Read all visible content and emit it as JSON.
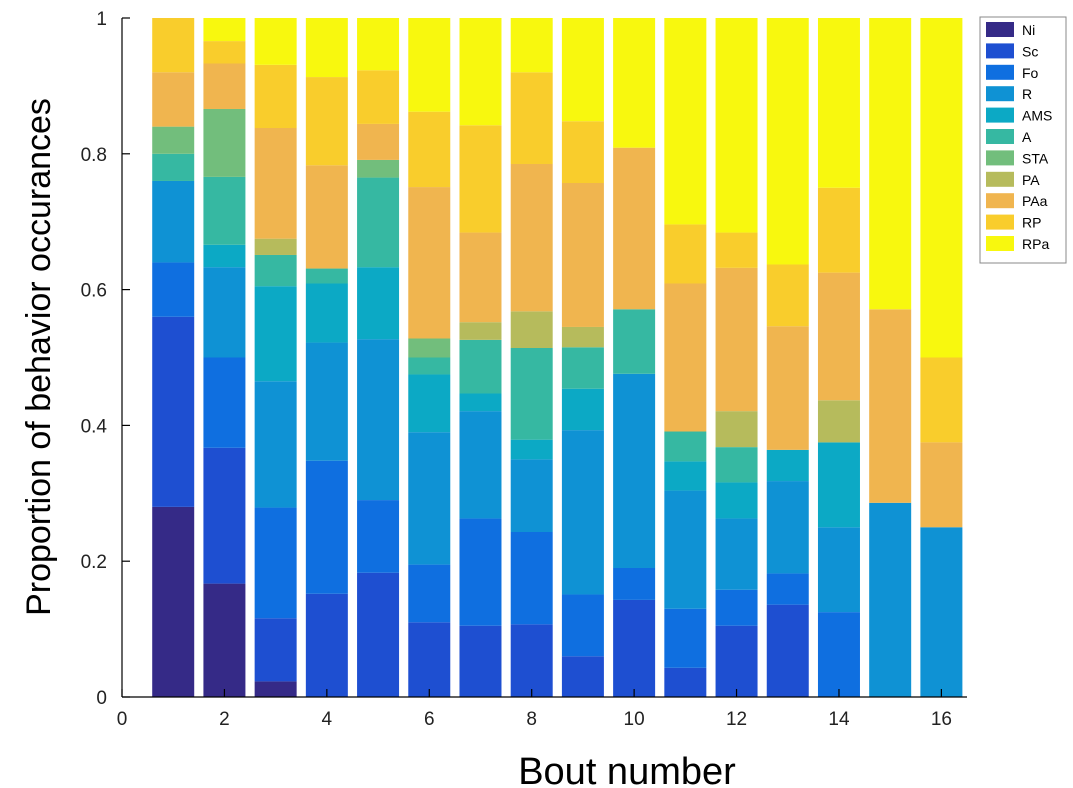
{
  "chart_data": {
    "type": "bar",
    "stacked": true,
    "xlabel": "Bout number",
    "ylabel": "Proportion of behavior occurances",
    "xlim": [
      0,
      16.5
    ],
    "ylim": [
      0,
      1
    ],
    "xticks": [
      0,
      2,
      4,
      6,
      8,
      10,
      12,
      14,
      16
    ],
    "yticks": [
      0,
      0.2,
      0.4,
      0.6,
      0.8,
      1
    ],
    "ytick_labels": [
      "0",
      "0.2",
      "0.4",
      "0.6",
      "0.8",
      "1"
    ],
    "legend_position": "top-right outside plot",
    "grid": false,
    "categories": [
      1,
      2,
      3,
      4,
      5,
      6,
      7,
      8,
      9,
      10,
      11,
      12,
      13,
      14,
      15,
      16
    ],
    "series": [
      {
        "name": "Ni",
        "color": "#352a87",
        "values": [
          0.28,
          0.167,
          0.023,
          0,
          0,
          0,
          0,
          0,
          0,
          0,
          0,
          0,
          0,
          0,
          0,
          0
        ]
      },
      {
        "name": "Sc",
        "color": "#1e4fd1",
        "values": [
          0.28,
          0.2,
          0.093,
          0.152,
          0.183,
          0.11,
          0.105,
          0.107,
          0.06,
          0.143,
          0.043,
          0.105,
          0.136,
          0,
          0,
          0
        ]
      },
      {
        "name": "Fo",
        "color": "#0f6fe0",
        "values": [
          0.08,
          0.133,
          0.163,
          0.196,
          0.107,
          0.085,
          0.158,
          0.136,
          0.091,
          0.047,
          0.087,
          0.053,
          0.046,
          0.125,
          0,
          0
        ]
      },
      {
        "name": "R",
        "color": "#0f92d4",
        "values": [
          0.12,
          0.133,
          0.186,
          0.174,
          0.237,
          0.195,
          0.158,
          0.107,
          0.242,
          0.286,
          0.174,
          0.105,
          0.136,
          0.125,
          0.286,
          0.25
        ]
      },
      {
        "name": "AMS",
        "color": "#0ca9c5",
        "values": [
          0,
          0.033,
          0.14,
          0.087,
          0.106,
          0.085,
          0.026,
          0.029,
          0.061,
          0,
          0.043,
          0.053,
          0.046,
          0.125,
          0,
          0
        ]
      },
      {
        "name": "A",
        "color": "#36b8a2",
        "values": [
          0.04,
          0.1,
          0.046,
          0.022,
          0.132,
          0.025,
          0.079,
          0.135,
          0.061,
          0.095,
          0.044,
          0.052,
          0,
          0,
          0,
          0
        ]
      },
      {
        "name": "STA",
        "color": "#72be7c",
        "values": [
          0.04,
          0.1,
          0,
          0,
          0.026,
          0.028,
          0,
          0,
          0,
          0,
          0,
          0,
          0,
          0,
          0,
          0
        ]
      },
      {
        "name": "PA",
        "color": "#b6bb5c",
        "values": [
          0,
          0,
          0.024,
          0,
          0,
          0,
          0.026,
          0.054,
          0.03,
          0,
          0,
          0.053,
          0,
          0.062,
          0,
          0
        ]
      },
      {
        "name": "PAa",
        "color": "#f0b54f",
        "values": [
          0.08,
          0.067,
          0.163,
          0.152,
          0.053,
          0.223,
          0.132,
          0.217,
          0.212,
          0.238,
          0.218,
          0.211,
          0.182,
          0.188,
          0.285,
          0.125
        ]
      },
      {
        "name": "RP",
        "color": "#f9cd2c",
        "values": [
          0.08,
          0.033,
          0.093,
          0.13,
          0.079,
          0.111,
          0.158,
          0.135,
          0.091,
          0,
          0.087,
          0.052,
          0.091,
          0.125,
          0,
          0.125
        ]
      },
      {
        "name": "RPa",
        "color": "#f8f80e",
        "values": [
          0,
          0.034,
          0.069,
          0.087,
          0.077,
          0.138,
          0.158,
          0.08,
          0.152,
          0.191,
          0.304,
          0.316,
          0.363,
          0.25,
          0.429,
          0.5
        ]
      }
    ]
  }
}
